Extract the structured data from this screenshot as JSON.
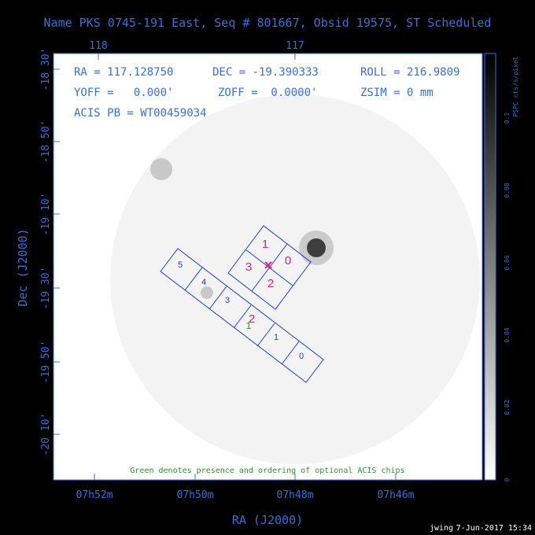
{
  "header": {
    "title": "Name PKS 0745-191 East, Seq # 801667, Obsid 19575, ST Scheduled"
  },
  "info": {
    "ra": "RA = 117.128750",
    "dec": "DEC = -19.390333",
    "roll": "ROLL = 216.9809",
    "yoff": "YOFF =   0.000'",
    "zoff": "ZOFF =  0.0000'",
    "zsim": "ZSIM = 0 mm",
    "acis": "ACIS PB = WT00459034"
  },
  "axes": {
    "top_ticks": [
      "118",
      "117"
    ],
    "left_ticks": [
      "-18 30'",
      "-18 50'",
      "-19 10'",
      "-19 30'",
      "-19 50'",
      "-20 10'"
    ],
    "bottom_ticks": [
      "07h52m",
      "07h50m",
      "07h48m",
      "07h46m"
    ],
    "xlabel": "RA (J2000)",
    "ylabel": "Dec (J2000)"
  },
  "colorbar": {
    "label": "PSPC cts/s/pixel",
    "ticks": [
      "0",
      "0.02",
      "0.04",
      "0.06",
      "0.08",
      "0.1"
    ]
  },
  "chips": {
    "imaging": [
      "0",
      "1",
      "2",
      "3"
    ],
    "spectroscopy": [
      "0",
      "1",
      "2",
      "3",
      "4",
      "5"
    ],
    "optional": [
      "2",
      "1"
    ]
  },
  "note": "Green denotes presence and ordering of optional ACIS chips",
  "footer": {
    "user": "jwing",
    "date": "7-Jun-2017 15:34"
  },
  "colors": {
    "text": "#3a6fd8",
    "chip_outline": "#1a3fd0",
    "aimpoint": "#e0207a",
    "optional": "#2f8f2f",
    "background": "#000000"
  }
}
